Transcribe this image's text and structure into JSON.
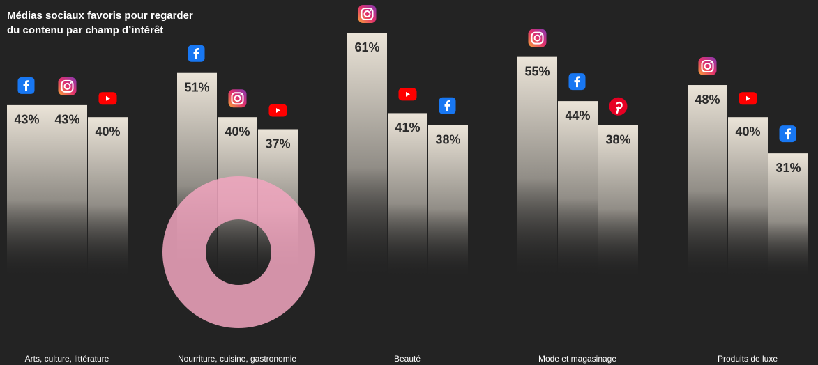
{
  "chart_data": {
    "type": "grouped-bar",
    "title": [
      "Médias sociaux favoris pour regarder",
      "du contenu par champ d’intérêt"
    ],
    "bar_color": "#ebe4d8",
    "groups": [
      {
        "category": "Arts, culture, littérature",
        "bars": [
          {
            "icon": "facebook",
            "value": 43,
            "value_label": "43%"
          },
          {
            "icon": "instagram",
            "value": 43,
            "value_label": "43%"
          },
          {
            "icon": "youtube",
            "value": 40,
            "value_label": "40%"
          }
        ]
      },
      {
        "category": "Nourriture, cuisine, gastronomie",
        "bars": [
          {
            "icon": "facebook",
            "value": 51,
            "value_label": "51%"
          },
          {
            "icon": "instagram",
            "value": 40,
            "value_label": "40%"
          },
          {
            "icon": "youtube",
            "value": 37,
            "value_label": "37%"
          }
        ]
      },
      {
        "category": "Beauté",
        "bars": [
          {
            "icon": "instagram",
            "value": 61,
            "value_label": "61%"
          },
          {
            "icon": "youtube",
            "value": 41,
            "value_label": "41%"
          },
          {
            "icon": "facebook",
            "value": 38,
            "value_label": "38%"
          }
        ]
      },
      {
        "category": "Mode et magasinage",
        "bars": [
          {
            "icon": "instagram",
            "value": 55,
            "value_label": "55%"
          },
          {
            "icon": "facebook",
            "value": 44,
            "value_label": "44%"
          },
          {
            "icon": "pinterest",
            "value": 38,
            "value_label": "38%"
          }
        ]
      },
      {
        "category": "Produits de luxe",
        "bars": [
          {
            "icon": "instagram",
            "value": 48,
            "value_label": "48%"
          },
          {
            "icon": "youtube",
            "value": 40,
            "value_label": "40%"
          },
          {
            "icon": "facebook",
            "value": 31,
            "value_label": "31%"
          }
        ]
      }
    ]
  }
}
